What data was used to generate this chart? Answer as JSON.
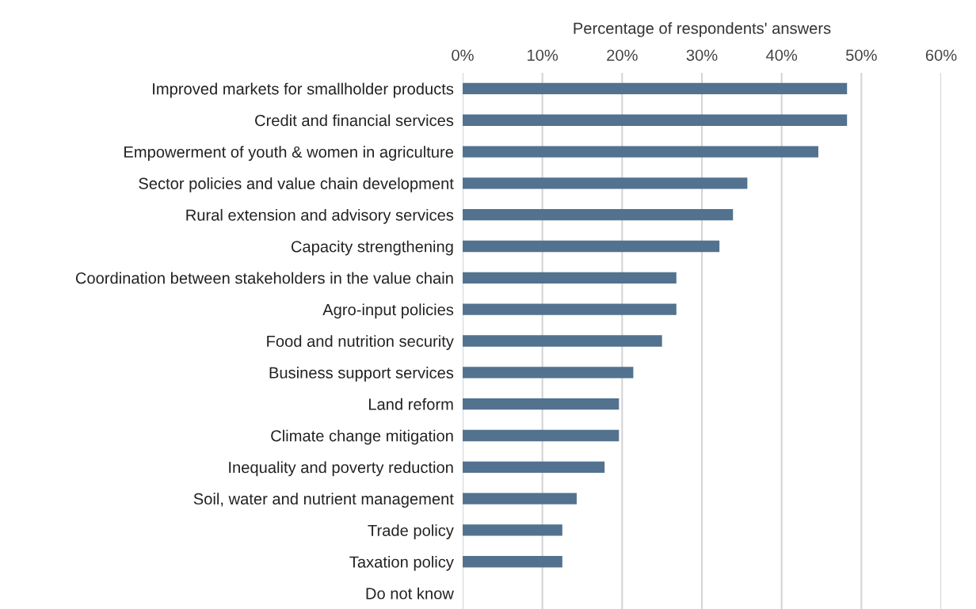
{
  "chart_data": {
    "type": "bar",
    "orientation": "horizontal",
    "xlabel": "Percentage of respondents' answers",
    "categories": [
      "Improved markets for smallholder products",
      "Credit and financial services",
      "Empowerment of youth & women in agriculture",
      "Sector policies and value chain development",
      "Rural extension and advisory services",
      "Capacity strengthening",
      "Coordination between stakeholders in the value chain",
      "Agro-input policies",
      "Food and nutrition security",
      "Business support services",
      "Land reform",
      "Climate change mitigation",
      "Inequality and poverty reduction",
      "Soil, water and nutrient management",
      "Trade policy",
      "Taxation policy",
      "Do not know"
    ],
    "values": [
      48.2,
      48.2,
      44.6,
      35.7,
      33.9,
      32.2,
      26.8,
      26.8,
      25.0,
      21.4,
      19.6,
      19.6,
      17.8,
      14.3,
      12.5,
      12.5,
      0
    ],
    "color": "#52728f",
    "xlim": [
      0,
      60
    ],
    "xticks": [
      {
        "value": 0,
        "label": "0%"
      },
      {
        "value": 10,
        "label": "10%"
      },
      {
        "value": 20,
        "label": "20%"
      },
      {
        "value": 30,
        "label": "30%"
      },
      {
        "value": 40,
        "label": "40%"
      },
      {
        "value": 50,
        "label": "50%"
      },
      {
        "value": 60,
        "label": "60%"
      }
    ],
    "grid": "x"
  }
}
